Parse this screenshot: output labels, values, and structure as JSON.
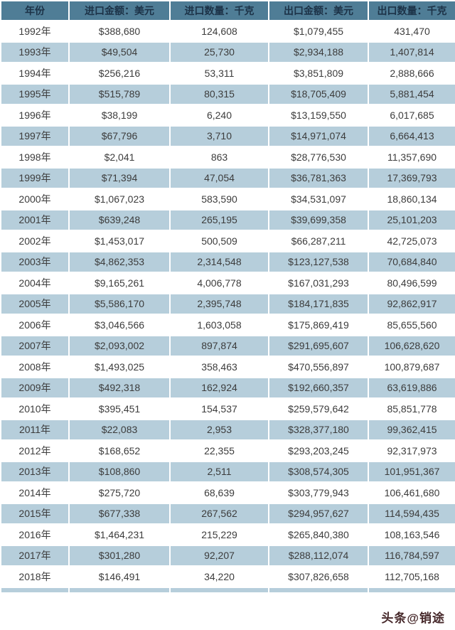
{
  "watermark": "头条@销途",
  "colors": {
    "header_bg": "#4f7d96",
    "header_text": "#1c3247",
    "stripe_bg": "#b6cedb",
    "row_bg": "#ffffff",
    "cell_text": "#3c3c3c",
    "watermark_text": "#46282a"
  },
  "chart_data": {
    "type": "table",
    "title": "",
    "columns": [
      "年份",
      "进口金额：美元",
      "进口数量：千克",
      "出口金额：美元",
      "出口数量：千克"
    ],
    "rows": [
      [
        "1992年",
        "$388,680",
        "124,608",
        "$1,079,455",
        "431,470"
      ],
      [
        "1993年",
        "$49,504",
        "25,730",
        "$2,934,188",
        "1,407,814"
      ],
      [
        "1994年",
        "$256,216",
        "53,311",
        "$3,851,809",
        "2,888,666"
      ],
      [
        "1995年",
        "$515,789",
        "80,315",
        "$18,705,409",
        "5,881,454"
      ],
      [
        "1996年",
        "$38,199",
        "6,240",
        "$13,159,550",
        "6,017,685"
      ],
      [
        "1997年",
        "$67,796",
        "3,710",
        "$14,971,074",
        "6,664,413"
      ],
      [
        "1998年",
        "$2,041",
        "863",
        "$28,776,530",
        "11,357,690"
      ],
      [
        "1999年",
        "$71,394",
        "47,054",
        "$36,781,363",
        "17,369,793"
      ],
      [
        "2000年",
        "$1,067,023",
        "583,590",
        "$34,531,097",
        "18,860,134"
      ],
      [
        "2001年",
        "$639,248",
        "265,195",
        "$39,699,358",
        "25,101,203"
      ],
      [
        "2002年",
        "$1,453,017",
        "500,509",
        "$66,287,211",
        "42,725,073"
      ],
      [
        "2003年",
        "$4,862,353",
        "2,314,548",
        "$123,127,538",
        "70,684,840"
      ],
      [
        "2004年",
        "$9,165,261",
        "4,006,778",
        "$167,031,293",
        "80,496,599"
      ],
      [
        "2005年",
        "$5,586,170",
        "2,395,748",
        "$184,171,835",
        "92,862,917"
      ],
      [
        "2006年",
        "$3,046,566",
        "1,603,058",
        "$175,869,419",
        "85,655,560"
      ],
      [
        "2007年",
        "$2,093,002",
        "897,874",
        "$291,695,607",
        "106,628,620"
      ],
      [
        "2008年",
        "$1,493,025",
        "358,463",
        "$470,556,897",
        "100,879,687"
      ],
      [
        "2009年",
        "$492,318",
        "162,924",
        "$192,660,357",
        "63,619,886"
      ],
      [
        "2010年",
        "$395,451",
        "154,537",
        "$259,579,642",
        "85,851,778"
      ],
      [
        "2011年",
        "$22,083",
        "2,953",
        "$328,377,180",
        "99,362,415"
      ],
      [
        "2012年",
        "$168,652",
        "22,355",
        "$293,203,245",
        "92,317,973"
      ],
      [
        "2013年",
        "$108,860",
        "2,511",
        "$308,574,305",
        "101,951,367"
      ],
      [
        "2014年",
        "$275,720",
        "68,639",
        "$303,779,943",
        "106,461,680"
      ],
      [
        "2015年",
        "$677,338",
        "267,562",
        "$294,957,627",
        "114,594,435"
      ],
      [
        "2016年",
        "$1,464,231",
        "215,229",
        "$265,840,380",
        "108,163,546"
      ],
      [
        "2017年",
        "$301,280",
        "92,207",
        "$288,112,074",
        "116,784,597"
      ],
      [
        "2018年",
        "$146,491",
        "34,220",
        "$307,826,658",
        "112,705,168"
      ]
    ]
  }
}
